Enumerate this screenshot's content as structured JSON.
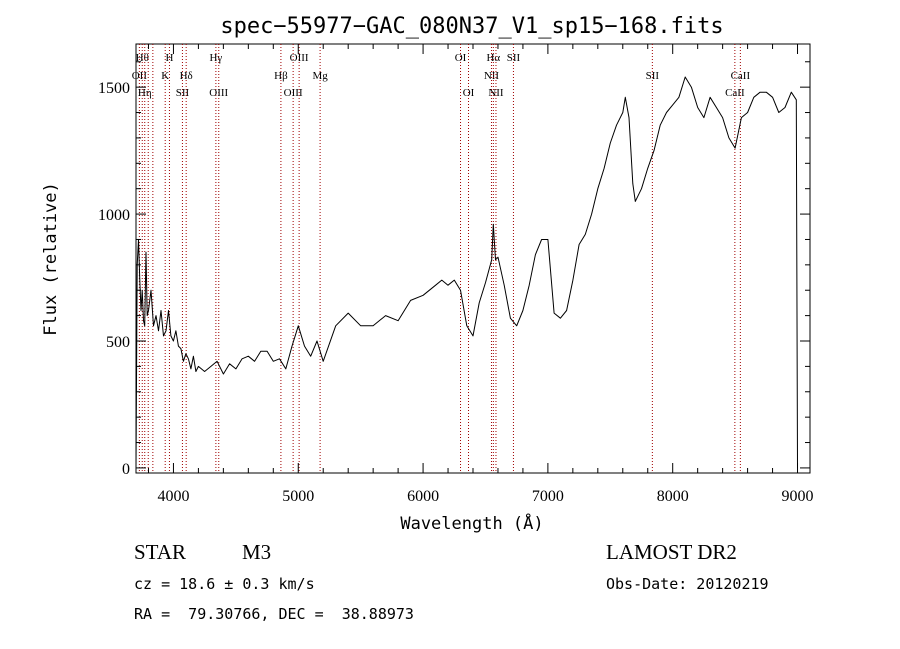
{
  "chart_data": {
    "type": "line",
    "title": "spec−55977−GAC_080N37_V1_sp15−168.fits",
    "xlabel": "Wavelength (Å)",
    "ylabel": "Flux (relative)",
    "xlim": [
      3700,
      9100
    ],
    "ylim": [
      -20,
      1670
    ],
    "x_ticks": [
      4000,
      5000,
      6000,
      7000,
      8000,
      9000
    ],
    "y_ticks": [
      0,
      500,
      1000,
      1500
    ],
    "grid": false,
    "legend": "none",
    "series": [
      {
        "x": [
          3700,
          3710,
          3720,
          3730,
          3740,
          3750,
          3760,
          3770,
          3780,
          3790,
          3800,
          3820,
          3840,
          3860,
          3880,
          3900,
          3920,
          3940,
          3960,
          3980,
          4000,
          4020,
          4040,
          4060,
          4080,
          4100,
          4120,
          4140,
          4160,
          4180,
          4200,
          4250,
          4300,
          4350,
          4400,
          4450,
          4500,
          4550,
          4600,
          4650,
          4700,
          4750,
          4800,
          4850,
          4900,
          4950,
          5000,
          5050,
          5100,
          5150,
          5200,
          5300,
          5400,
          5500,
          5600,
          5700,
          5800,
          5900,
          6000,
          6100,
          6150,
          6200,
          6250,
          6300,
          6350,
          6400,
          6450,
          6500,
          6550,
          6563,
          6580,
          6600,
          6650,
          6700,
          6750,
          6800,
          6850,
          6900,
          6950,
          7000,
          7050,
          7100,
          7150,
          7200,
          7250,
          7300,
          7350,
          7400,
          7450,
          7500,
          7550,
          7600,
          7620,
          7650,
          7680,
          7700,
          7750,
          7800,
          7850,
          7900,
          7950,
          8000,
          8050,
          8100,
          8150,
          8200,
          8250,
          8300,
          8350,
          8400,
          8450,
          8500,
          8550,
          8600,
          8650,
          8700,
          8750,
          8800,
          8850,
          8900,
          8950,
          8990,
          9000
        ],
        "y": [
          0,
          800,
          900,
          750,
          620,
          700,
          580,
          560,
          850,
          600,
          620,
          700,
          560,
          600,
          540,
          620,
          520,
          540,
          620,
          520,
          500,
          540,
          480,
          470,
          420,
          450,
          430,
          390,
          440,
          380,
          400,
          380,
          400,
          420,
          370,
          410,
          390,
          430,
          440,
          420,
          460,
          460,
          420,
          430,
          390,
          480,
          560,
          480,
          440,
          500,
          420,
          560,
          610,
          560,
          560,
          600,
          580,
          660,
          680,
          720,
          740,
          720,
          740,
          700,
          560,
          520,
          650,
          730,
          820,
          960,
          820,
          830,
          720,
          590,
          560,
          620,
          720,
          840,
          900,
          900,
          610,
          590,
          620,
          740,
          880,
          920,
          1000,
          1100,
          1180,
          1280,
          1350,
          1400,
          1460,
          1380,
          1120,
          1050,
          1100,
          1180,
          1250,
          1350,
          1400,
          1430,
          1460,
          1540,
          1500,
          1420,
          1380,
          1460,
          1420,
          1380,
          1300,
          1260,
          1380,
          1400,
          1460,
          1480,
          1480,
          1460,
          1400,
          1420,
          1480,
          1450,
          0
        ]
      }
    ],
    "line_markers": [
      {
        "wl": 3727,
        "label": "OII",
        "row": 1
      },
      {
        "wl": 3750,
        "label": "Hθ",
        "row": 0
      },
      {
        "wl": 3770,
        "label": "Hη",
        "row": 2
      },
      {
        "wl": 3798,
        "label": "",
        "row": 2
      },
      {
        "wl": 3835,
        "label": "",
        "row": 2
      },
      {
        "wl": 3934,
        "label": "K",
        "row": 1
      },
      {
        "wl": 3968,
        "label": "H",
        "row": 0
      },
      {
        "wl": 4072,
        "label": "SII",
        "row": 2
      },
      {
        "wl": 4102,
        "label": "Hδ",
        "row": 1
      },
      {
        "wl": 4340,
        "label": "Hγ",
        "row": 0
      },
      {
        "wl": 4363,
        "label": "OIII",
        "row": 2
      },
      {
        "wl": 4861,
        "label": "Hβ",
        "row": 1
      },
      {
        "wl": 4959,
        "label": "OIII",
        "row": 2
      },
      {
        "wl": 5007,
        "label": "OIII",
        "row": 0
      },
      {
        "wl": 5175,
        "label": "Mg",
        "row": 1
      },
      {
        "wl": 6300,
        "label": "OI",
        "row": 0
      },
      {
        "wl": 6364,
        "label": "OI",
        "row": 2
      },
      {
        "wl": 6548,
        "label": "NII",
        "row": 1
      },
      {
        "wl": 6563,
        "label": "Hα",
        "row": 0
      },
      {
        "wl": 6584,
        "label": "NII",
        "row": 2
      },
      {
        "wl": 6724,
        "label": "SII",
        "row": 0
      },
      {
        "wl": 7837,
        "label": "SII",
        "row": 1
      },
      {
        "wl": 8498,
        "label": "CaII",
        "row": 2
      },
      {
        "wl": 8542,
        "label": "CaII",
        "row": 1
      }
    ]
  },
  "info": {
    "class": "STAR",
    "subclass": "M3",
    "survey": "LAMOST DR2",
    "cz": "cz = 18.6 ± 0.3 km/s",
    "obs_date": "Obs-Date: 20120219",
    "coords": "RA =  79.30766, DEC =  38.88973"
  }
}
